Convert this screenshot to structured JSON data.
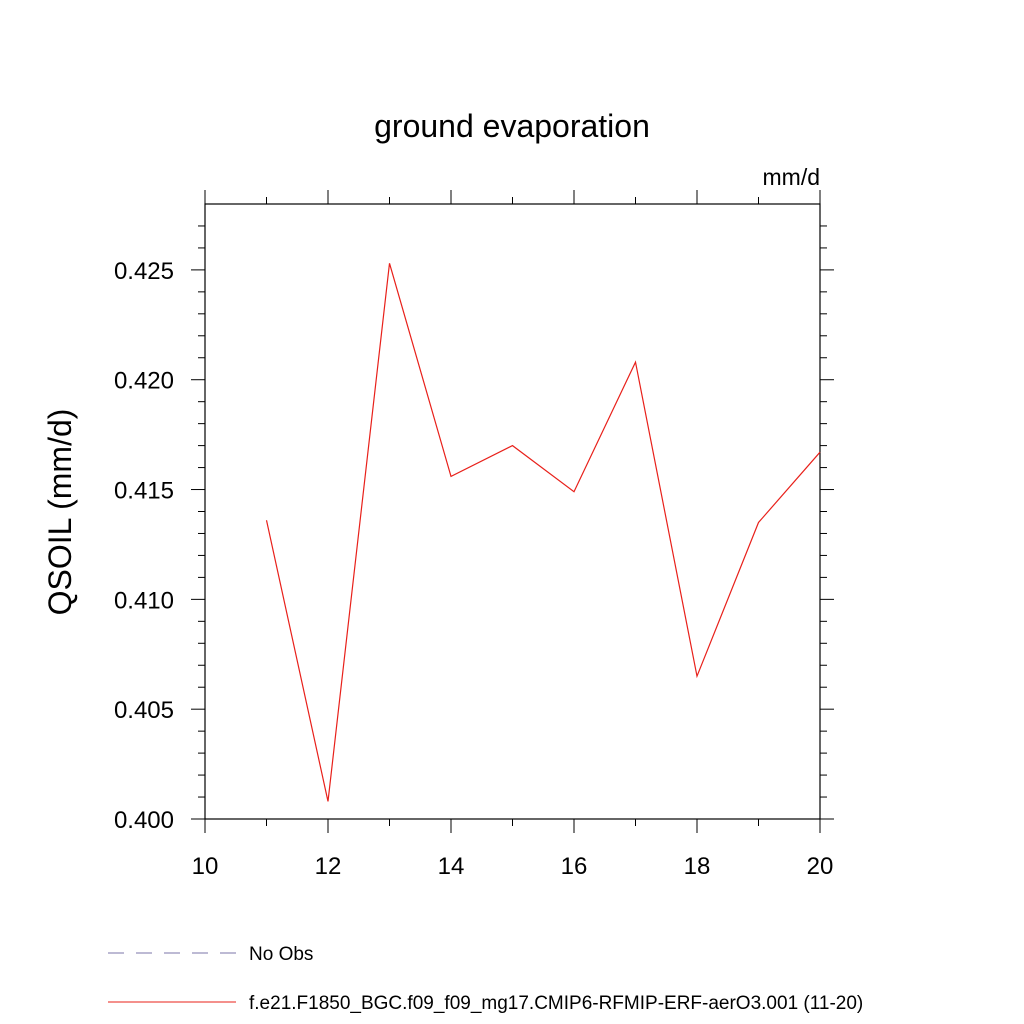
{
  "chart_data": {
    "type": "line",
    "title": "ground evaporation",
    "units_label": "mm/d",
    "ylabel": "QSOIL  (mm/d)",
    "xlabel": "",
    "xlim": [
      10,
      20
    ],
    "ylim": [
      0.4,
      0.428
    ],
    "x_ticks": [
      10,
      12,
      14,
      16,
      18,
      20
    ],
    "x_tick_labels": [
      "10",
      "12",
      "14",
      "16",
      "18",
      "20"
    ],
    "y_ticks": [
      0.4,
      0.405,
      0.41,
      0.415,
      0.42,
      0.425
    ],
    "y_tick_labels": [
      "0.400",
      "0.405",
      "0.410",
      "0.415",
      "0.420",
      "0.425"
    ],
    "grid": false,
    "legend_position": "bottom",
    "series": [
      {
        "name": "f.e21.F1850_BGC.f09_f09_mg17.CMIP6-RFMIP-ERF-aerO3.001 (11-20)",
        "color": "#e8201a",
        "style": "solid",
        "x": [
          11,
          12,
          13,
          14,
          15,
          16,
          17,
          18,
          19,
          20
        ],
        "y": [
          0.4136,
          0.4008,
          0.4253,
          0.4156,
          0.417,
          0.4149,
          0.4208,
          0.4065,
          0.4135,
          0.4167
        ]
      }
    ],
    "legend": [
      {
        "label": "No Obs",
        "color": "#7b74a8",
        "style": "dashed"
      },
      {
        "label": "f.e21.F1850_BGC.f09_f09_mg17.CMIP6-RFMIP-ERF-aerO3.001 (11-20)",
        "color": "#e8201a",
        "style": "solid"
      }
    ]
  }
}
